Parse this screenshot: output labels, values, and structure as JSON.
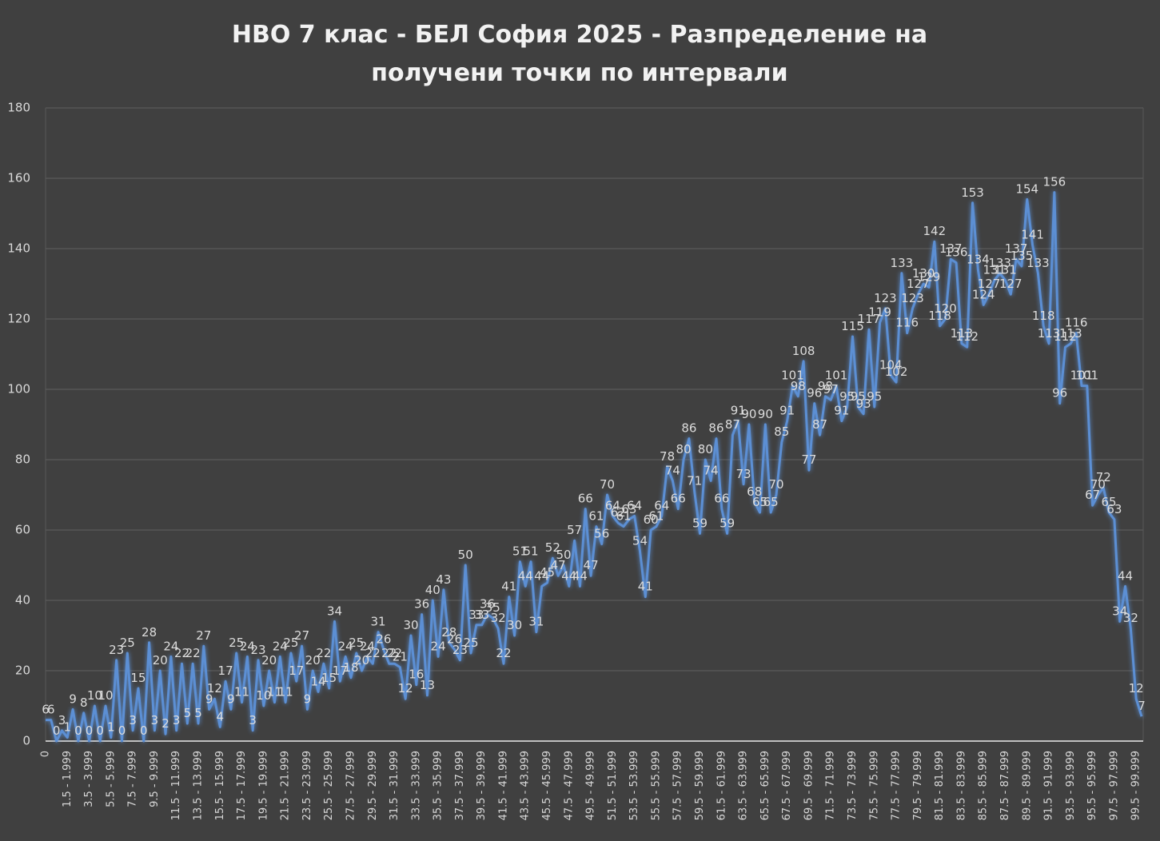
{
  "chart_data": {
    "type": "line",
    "title": "НВО 7 клас - БЕЛ София 2025 - Разпределение на получени точки по интервали",
    "categories": [
      "0",
      null,
      null,
      null,
      "1.5 - 1.999",
      null,
      null,
      null,
      "3.5 - 3.999",
      null,
      null,
      null,
      "5.5 - 5.999",
      null,
      null,
      null,
      "7.5 - 7.999",
      null,
      null,
      null,
      "9.5 - 9.999",
      null,
      null,
      null,
      "11.5 - 11.999",
      null,
      null,
      null,
      "13.5 - 13.999",
      null,
      null,
      null,
      "15.5 - 15.999",
      null,
      null,
      null,
      "17.5 - 17.999",
      null,
      null,
      null,
      "19.5 - 19.999",
      null,
      null,
      null,
      "21.5 - 21.999",
      null,
      null,
      null,
      "23.5 - 23.999",
      null,
      null,
      null,
      "25.5 - 25.999",
      null,
      null,
      null,
      "27.5 - 27.999",
      null,
      null,
      null,
      "29.5 - 29.999",
      null,
      null,
      null,
      "31.5 - 31.999",
      null,
      null,
      null,
      "33.5 - 33.999",
      null,
      null,
      null,
      "35.5 - 35.999",
      null,
      null,
      null,
      "37.5 - 37.999",
      null,
      null,
      null,
      "39.5 - 39.999",
      null,
      null,
      null,
      "41.5 - 41.999",
      null,
      null,
      null,
      "43.5 - 43.999",
      null,
      null,
      null,
      "45.5 - 45.999",
      null,
      null,
      null,
      "47.5 - 47.999",
      null,
      null,
      null,
      "49.5 - 49.999",
      null,
      null,
      null,
      "51.5 - 51.999",
      null,
      null,
      null,
      "53.5 - 53.999",
      null,
      null,
      null,
      "55.5 - 55.999",
      null,
      null,
      null,
      "57.5 - 57.999",
      null,
      null,
      null,
      "59.5 - 59.999",
      null,
      null,
      null,
      "61.5 - 61.999",
      null,
      null,
      null,
      "63.5 - 63.999",
      null,
      null,
      null,
      "65.5 - 65.999",
      null,
      null,
      null,
      "67.5 - 67.999",
      null,
      null,
      null,
      "69.5 - 69.999",
      null,
      null,
      null,
      "71.5 - 71.999",
      null,
      null,
      null,
      "73.5 - 73.999",
      null,
      null,
      null,
      "75.5 - 75.999",
      null,
      null,
      null,
      "77.5 - 77.999",
      null,
      null,
      null,
      "79.5 - 79.999",
      null,
      null,
      null,
      "81.5 - 81.999",
      null,
      null,
      null,
      "83.5 - 83.999",
      null,
      null,
      null,
      "85.5 - 85.999",
      null,
      null,
      null,
      "87.5 - 87.999",
      null,
      null,
      null,
      "89.5 - 89.999",
      null,
      null,
      null,
      "91.5 - 91.999",
      null,
      null,
      null,
      "93.5 - 93.999",
      null,
      null,
      null,
      "95.5 - 95.999",
      null,
      null,
      null,
      "97.5 - 97.999",
      null,
      null,
      null,
      "99.5 - 99.999",
      null
    ],
    "series": [
      {
        "color": "#5b8fd4",
        "values": [
          6,
          6,
          0,
          3,
          1,
          9,
          0,
          8,
          0,
          10,
          0,
          10,
          1,
          23,
          0,
          25,
          3,
          15,
          0,
          28,
          3,
          20,
          2,
          24,
          3,
          22,
          5,
          22,
          5,
          27,
          9,
          12,
          4,
          17,
          9,
          25,
          11,
          24,
          3,
          23,
          10,
          20,
          11,
          24,
          11,
          25,
          17,
          27,
          9,
          20,
          14,
          22,
          15,
          34,
          17,
          24,
          18,
          25,
          20,
          24,
          22,
          31,
          26,
          22,
          22,
          21,
          12,
          30,
          16,
          36,
          13,
          40,
          24,
          43,
          28,
          26,
          23,
          50,
          25,
          33,
          33,
          36,
          35,
          32,
          22,
          41,
          30,
          51,
          44,
          51,
          31,
          44,
          45,
          52,
          47,
          50,
          44,
          57,
          44,
          66,
          47,
          61,
          56,
          70,
          64,
          62,
          61,
          63,
          64,
          54,
          41,
          60,
          61,
          64,
          78,
          74,
          66,
          80,
          86,
          71,
          59,
          80,
          74,
          86,
          66,
          59,
          87,
          91,
          73,
          90,
          68,
          65,
          90,
          65,
          70,
          85,
          91,
          101,
          98,
          108,
          77,
          96,
          87,
          98,
          97,
          101,
          91,
          95,
          115,
          95,
          93,
          117,
          95,
          119,
          123,
          104,
          102,
          133,
          116,
          123,
          127,
          130,
          129,
          142,
          118,
          120,
          137,
          136,
          113,
          112,
          153,
          134,
          124,
          127,
          131,
          133,
          131,
          127,
          137,
          135,
          154,
          141,
          133,
          118,
          113,
          156,
          96,
          112,
          113,
          116,
          101,
          101,
          67,
          70,
          72,
          65,
          63,
          34,
          44,
          32,
          12,
          7
        ]
      }
    ],
    "ylim": [
      0,
      180
    ],
    "yticks": [
      0,
      20,
      40,
      60,
      80,
      100,
      120,
      140,
      160,
      180
    ],
    "grid": true
  }
}
